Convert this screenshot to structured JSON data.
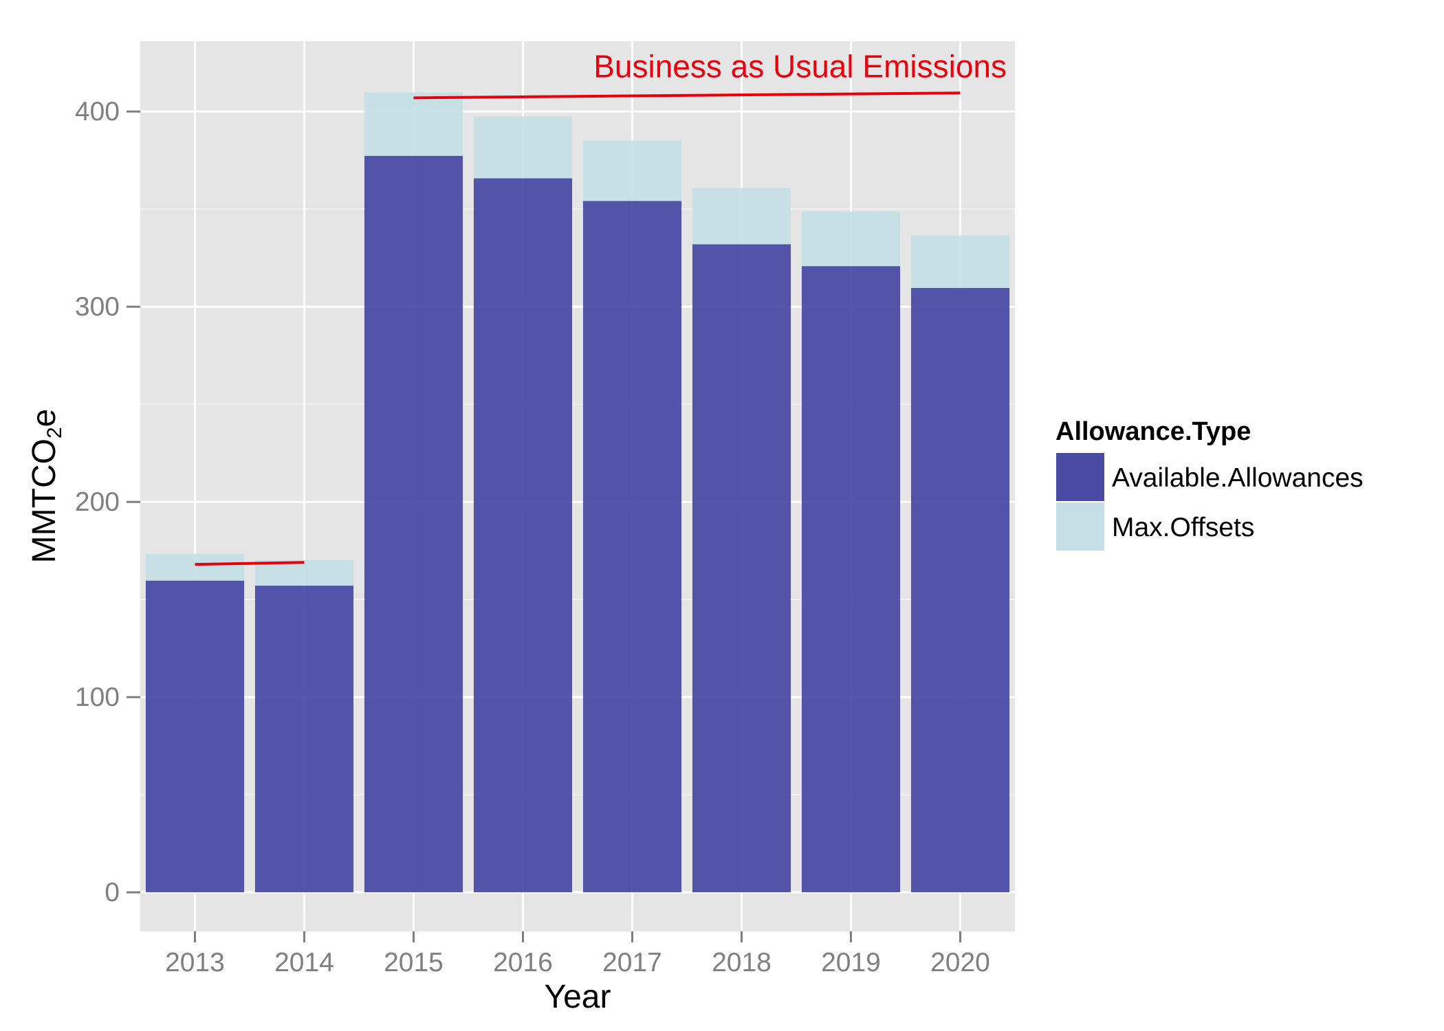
{
  "chart_data": {
    "type": "bar",
    "stacked": true,
    "xlabel": "Year",
    "ylabel": "MMTCO",
    "ylabel_subscript": "2",
    "ylabel_suffix": "e",
    "categories": [
      "2013",
      "2014",
      "2015",
      "2016",
      "2017",
      "2018",
      "2019",
      "2020"
    ],
    "series": [
      {
        "name": "Available.Allowances",
        "values": [
          159.7,
          157.1,
          377.3,
          365.8,
          354.2,
          332.0,
          320.8,
          309.6
        ],
        "color": "#4b4ba6"
      },
      {
        "name": "Max.Offsets",
        "values": [
          13.7,
          13.1,
          32.5,
          31.7,
          30.8,
          28.8,
          27.9,
          26.9
        ],
        "color": "#c4dfe6"
      }
    ],
    "ylim": [
      -20,
      436
    ],
    "yticks": [
      0,
      100,
      200,
      300,
      400
    ],
    "grid": true,
    "panel_background": "#e5e5e5",
    "legend": {
      "title": "Allowance.Type",
      "position": "right",
      "items": [
        {
          "label": "Available.Allowances",
          "color": "#4b4ba6"
        },
        {
          "label": "Max.Offsets",
          "color": "#c4dfe6"
        }
      ]
    },
    "annotation": {
      "text": "Business as Usual Emissions",
      "color": "#e8000b",
      "segments": [
        {
          "x": [
            "2013",
            "2014"
          ],
          "y": [
            168,
            169
          ]
        },
        {
          "x": [
            "2015",
            "2020"
          ],
          "y": [
            407,
            409.5
          ]
        }
      ]
    }
  }
}
